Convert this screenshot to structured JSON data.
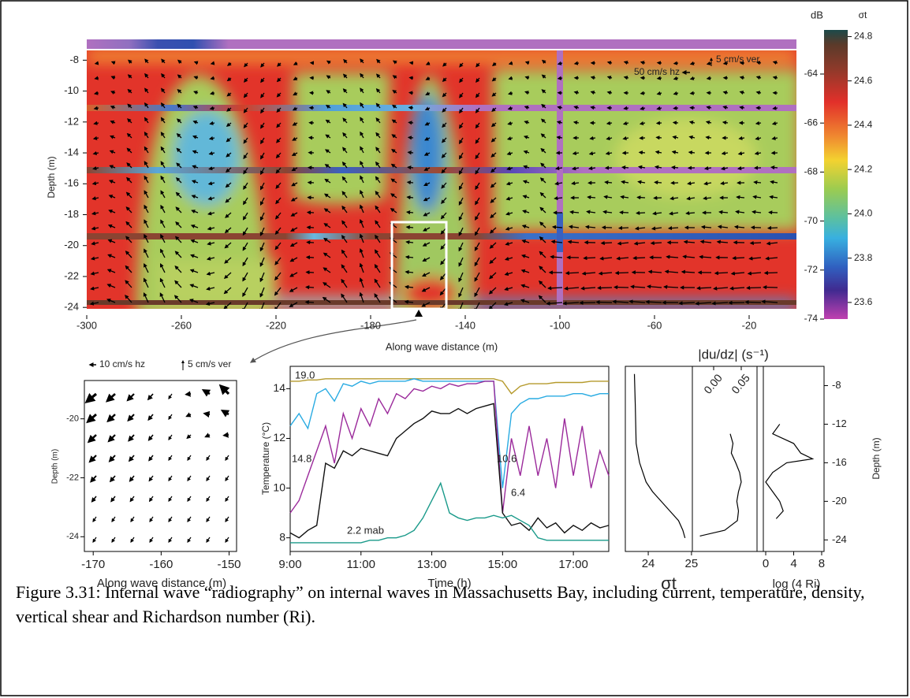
{
  "chart_data": [
    {
      "type": "heatmap",
      "x_label": "Along wave distance (m)",
      "y_label": "Depth (m)",
      "xlim": [
        -300,
        0
      ],
      "ylim": [
        -24.5,
        -6.4
      ],
      "xticks": [
        -300,
        -260,
        -220,
        -180,
        -140,
        -100,
        -60,
        -20
      ],
      "yticks": [
        -8,
        -10,
        -12,
        -14,
        -16,
        -18,
        -20,
        -22,
        -24
      ],
      "annotations": [
        "50 cm/s hz",
        "5 cm/s ver"
      ],
      "colorbar": {
        "label": "dB",
        "lim": [
          -74,
          -62.2
        ],
        "ticks": [
          -64,
          -66,
          -68,
          -70,
          -72,
          -74
        ],
        "label2": "σt",
        "lim2": [
          23.525,
          24.83
        ],
        "ticks2": [
          24.8,
          24.6,
          24.4,
          24.2,
          {
            "value": 24,
            "label": "24.0"
          },
          23.8,
          23.6
        ]
      }
    },
    {
      "type": "quiver",
      "x_label": "Along wave distance (m)",
      "y_label": "Depth (m)",
      "xlim": [
        -171.3,
        -148.9
      ],
      "ylim": [
        -24.5,
        -18.7
      ],
      "xticks": [
        -170,
        -160,
        -150
      ],
      "yticks": [
        -20,
        -22,
        -24
      ],
      "annotations": [
        "10 cm/s hz",
        "5 cm/s ver"
      ]
    },
    {
      "type": "line",
      "x_label": "Time (h)",
      "y_label": "Temperature (°C)",
      "xlim": [
        9,
        18
      ],
      "ylim": [
        7.45,
        14.9
      ],
      "xticks": [
        {
          "value": 9,
          "label": "9:00"
        },
        {
          "value": 11,
          "label": "11:00"
        },
        {
          "value": 13,
          "label": "13:00"
        },
        {
          "value": 15,
          "label": "15:00"
        },
        {
          "value": 17,
          "label": "17:00"
        }
      ],
      "yticks": [
        8,
        10,
        12,
        14
      ],
      "x": [
        9,
        9.25,
        9.5,
        9.75,
        10,
        10.25,
        10.5,
        10.75,
        11,
        11.25,
        11.5,
        11.75,
        12,
        12.25,
        12.5,
        12.75,
        13,
        13.25,
        13.5,
        13.75,
        14,
        14.25,
        14.5,
        14.75,
        15,
        15.25,
        15.5,
        15.75,
        16,
        16.25,
        16.5,
        16.75,
        17,
        17.25,
        17.5,
        17.75,
        18
      ],
      "series": [
        {
          "name": "19.0",
          "color": "#b59a2c",
          "values": [
            14.3,
            14.3,
            14.35,
            14.35,
            14.4,
            14.4,
            14.4,
            14.4,
            14.4,
            14.4,
            14.4,
            14.4,
            14.4,
            14.4,
            14.4,
            14.4,
            14.4,
            14.4,
            14.4,
            14.4,
            14.4,
            14.4,
            14.4,
            14.4,
            14.3,
            13.8,
            14.1,
            14.2,
            14.2,
            14.2,
            14.25,
            14.25,
            14.25,
            14.25,
            14.3,
            14.3,
            14.3
          ]
        },
        {
          "name": "14.8",
          "color": "#29abe2",
          "values": [
            12.5,
            13.0,
            12.4,
            13.8,
            14.0,
            13.5,
            14.2,
            14.1,
            14.3,
            14.2,
            14.3,
            14.3,
            14.3,
            14.3,
            14.4,
            14.3,
            14.3,
            14.3,
            14.3,
            14.3,
            14.3,
            14.3,
            14.3,
            14.3,
            10.0,
            13.0,
            13.4,
            13.6,
            13.6,
            13.7,
            13.7,
            13.7,
            13.8,
            13.8,
            13.7,
            13.8,
            13.8
          ]
        },
        {
          "name": "10.6",
          "color": "#9b2a9b",
          "values": [
            9.0,
            9.5,
            10.5,
            11.5,
            12.5,
            11.0,
            13.0,
            12.0,
            13.2,
            12.5,
            13.6,
            13.0,
            13.8,
            13.6,
            14.0,
            13.9,
            14.1,
            14.0,
            14.2,
            14.1,
            14.2,
            14.2,
            14.3,
            14.3,
            9.0,
            12.0,
            10.5,
            12.5,
            10.5,
            12.0,
            10.0,
            12.8,
            10.5,
            12.5,
            10.0,
            11.5,
            10.5
          ]
        },
        {
          "name": "6.4",
          "color": "#111111",
          "values": [
            8.2,
            8.0,
            8.3,
            8.5,
            11.0,
            10.8,
            11.5,
            11.3,
            11.6,
            11.5,
            11.4,
            11.3,
            12.0,
            12.3,
            12.6,
            12.8,
            13.1,
            13.0,
            13.0,
            13.2,
            13.0,
            13.2,
            13.3,
            13.4,
            9.0,
            8.5,
            8.6,
            8.3,
            8.8,
            8.4,
            8.6,
            8.2,
            8.5,
            8.3,
            8.6,
            8.4,
            8.5
          ]
        },
        {
          "name": "2.2 mab",
          "color": "#1a9a8a",
          "values": [
            7.8,
            7.8,
            7.8,
            7.8,
            7.8,
            7.8,
            7.8,
            7.8,
            7.8,
            7.9,
            7.9,
            8.0,
            8.0,
            8.1,
            8.3,
            8.8,
            9.5,
            10.2,
            9.0,
            8.8,
            8.7,
            8.8,
            8.8,
            8.9,
            8.8,
            8.9,
            8.7,
            8.5,
            8.0,
            7.9,
            7.9,
            7.9,
            7.9,
            7.9,
            7.9,
            7.9,
            7.9
          ]
        }
      ]
    },
    {
      "type": "profile",
      "y_label": "Depth (m)",
      "ylim": [
        -25.2,
        -6.0
      ],
      "yticks": [
        -8,
        -12,
        -16,
        -20,
        -24
      ],
      "panels": [
        {
          "x_label": "σt",
          "xlim": [
            23.47,
            25.02
          ],
          "xticks": [
            24,
            25
          ],
          "depth": [
            -6.8,
            -10,
            -14,
            -16,
            -18,
            -19,
            -20,
            -21,
            -22,
            -23,
            -23.8
          ],
          "values": [
            23.68,
            23.7,
            23.72,
            23.8,
            23.95,
            24.1,
            24.3,
            24.5,
            24.7,
            24.8,
            24.85
          ]
        },
        {
          "x_label": "|du/dz| (s⁻¹)",
          "xlim": [
            -0.0386,
            0.0786
          ],
          "xticks": [
            {
              "value": 0,
              "label": "0.00"
            },
            {
              "value": 0.05,
              "label": "0.05"
            }
          ],
          "depth": [
            -13,
            -14,
            -15,
            -16,
            -17,
            -18,
            -19,
            -20,
            -21,
            -22,
            -23,
            -23.6
          ],
          "values": [
            0.03,
            0.035,
            0.032,
            0.04,
            0.047,
            0.05,
            0.045,
            0.042,
            0.045,
            0.043,
            0.02,
            -0.025
          ]
        },
        {
          "x_label": "log (4 Ri)",
          "xlim": [
            -0.34,
            8.34
          ],
          "xticks": [
            0,
            4,
            8
          ],
          "depth": [
            -12,
            -13,
            -14,
            -15,
            -15.6,
            -16,
            -17,
            -18,
            -19,
            -20,
            -21,
            -21.8
          ],
          "values": [
            2,
            1,
            4,
            5,
            6.7,
            3,
            1,
            0,
            1,
            2,
            2.5,
            1.5
          ]
        }
      ]
    }
  ],
  "caption": "Figure 3.31: Internal wave “radiography” on internal waves in Massachusetts Bay, including current, temperature, density, vertical shear and Richardson number (Ri)."
}
